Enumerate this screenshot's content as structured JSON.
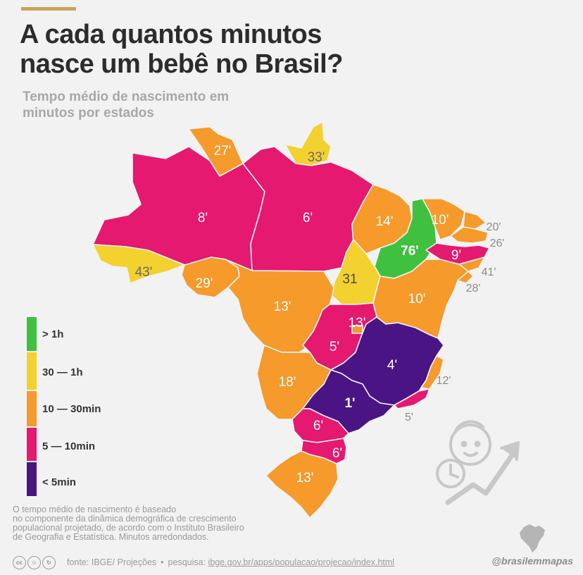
{
  "title": {
    "line1": "A cada quantos minutos",
    "line2": "nasce um bebê no Brasil?"
  },
  "subtitle": {
    "line1": "Tempo médio de nascimento em",
    "line2": "minutos por estados"
  },
  "colors": {
    "over_1h": "#3fc13f",
    "30_to_1h": "#f3d12e",
    "10_to_30min": "#f59a2b",
    "5_to_10min": "#e4196f",
    "under_5min": "#4b1485",
    "background": "#f2f2f2",
    "accent_bar": "#c8a55a"
  },
  "legend": [
    {
      "label": "> 1h",
      "color": "#3fc13f"
    },
    {
      "label": "30 — 1h",
      "color": "#f3d12e"
    },
    {
      "label": "10 — 30min",
      "color": "#f59a2b"
    },
    {
      "label": "5 — 10min",
      "color": "#e4196f"
    },
    {
      "label": "< 5min",
      "color": "#4b1485"
    }
  ],
  "states": {
    "RR": "27'",
    "AP": "33'",
    "AM": "8'",
    "PA": "6'",
    "AC": "43'",
    "RO": "29'",
    "MA": "14'",
    "PI": "76'",
    "CE": "10'",
    "RN": "20'",
    "PB": "26'",
    "PE": "9'",
    "AL": "41'",
    "SE": "28'",
    "TO": "31",
    "BA": "10'",
    "MT": "13'",
    "DF": "13'",
    "GO": "5'",
    "MG": "4'",
    "ES": "12'",
    "MS": "18'",
    "SP": "1'",
    "RJ": "5'",
    "PR": "6'",
    "SC": "6'",
    "RS": "13'"
  },
  "note": {
    "line1": "O tempo médio de nascimento é baseado",
    "line2": "no componente da dinâmica demográfica de crescimento",
    "line3": "populacional projetado, de acordo com o  Instituto Brasileiro",
    "line4": "de Geografia e Estatística. Minutos arredondados."
  },
  "footer": {
    "source": "fonte: IBGE/ Projeções",
    "bullet": "•",
    "research_label": "pesquisa:",
    "research_url": "ibge.gov.br/apps/populacao/projecao/index.html",
    "handle": "@brasilemmapas"
  },
  "icons": [
    "creative-commons-icon",
    "baby-face-icon",
    "clock-icon",
    "growth-arrow-icon",
    "brazil-map-logo-icon"
  ]
}
